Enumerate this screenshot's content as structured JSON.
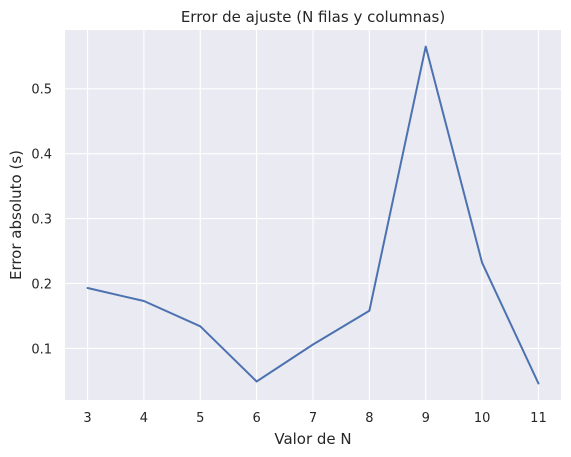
{
  "chart_data": {
    "type": "line",
    "title": "Error de ajuste (N filas y columnas)",
    "xlabel": "Valor de N",
    "ylabel": "Error absoluto (s)",
    "x": [
      3,
      4,
      5,
      6,
      7,
      8,
      9,
      10,
      11
    ],
    "series": [
      {
        "values": [
          0.193,
          0.173,
          0.134,
          0.049,
          0.106,
          0.158,
          0.565,
          0.232,
          0.046
        ]
      }
    ],
    "xticks": [
      "3",
      "4",
      "5",
      "6",
      "7",
      "8",
      "9",
      "10",
      "11"
    ],
    "yticks": [
      "0.1",
      "0.2",
      "0.3",
      "0.4",
      "0.5"
    ],
    "xlim": [
      2.6,
      11.4
    ],
    "ylim": [
      0.0205,
      0.5905
    ],
    "grid": true,
    "colors": {
      "line": "#4c72b0",
      "background": "#eaeaf2",
      "grid": "#ffffff"
    }
  }
}
